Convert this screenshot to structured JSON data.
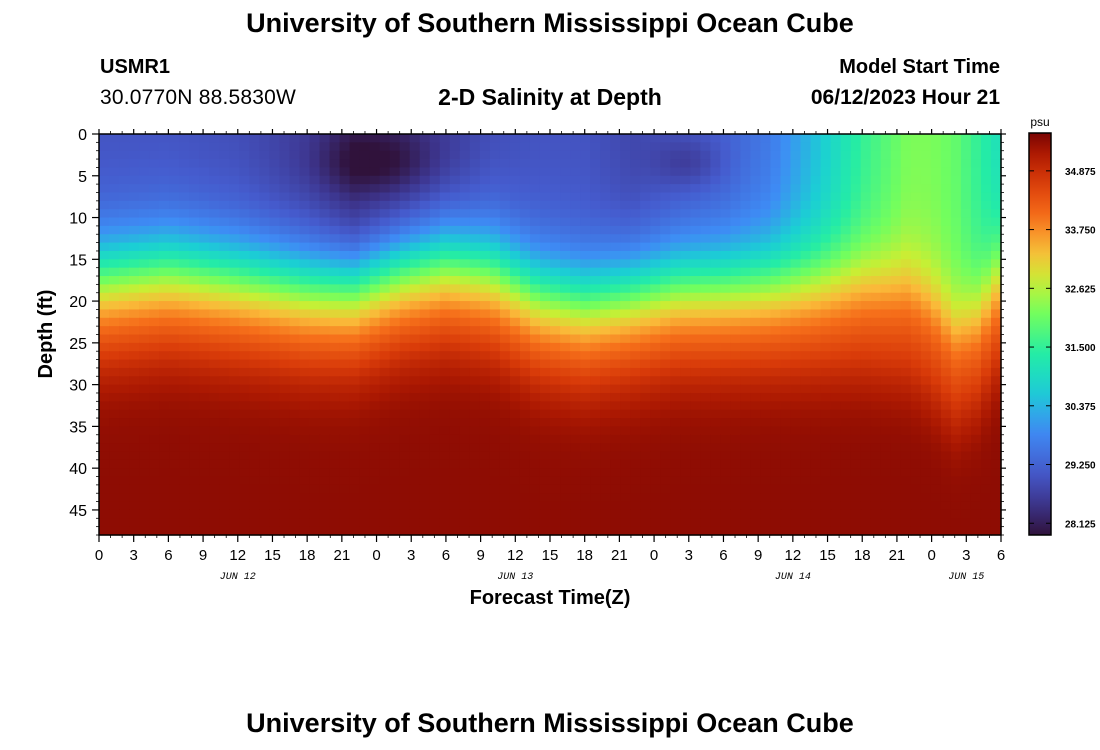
{
  "header": {
    "title": "University of Southern Mississippi Ocean Cube",
    "station_id": "USMR1",
    "station_coords": "30.0770N  88.5830W",
    "subtitle": "2-D Salinity at Depth",
    "model_start_label": "Model Start Time",
    "model_start_value": "06/12/2023 Hour 21"
  },
  "footer": {
    "title": "University of Southern Mississippi Ocean Cube"
  },
  "chart_data": {
    "type": "heatmap",
    "title": "2-D Salinity at Depth",
    "xlabel": "Forecast Time(Z)",
    "ylabel": "Depth (ft)",
    "x_hours": [
      0,
      78
    ],
    "xlim": [
      0,
      78
    ],
    "ylim": [
      0,
      48
    ],
    "x_tick_labels": [
      "0",
      "3",
      "6",
      "9",
      "12",
      "15",
      "18",
      "21",
      "0",
      "3",
      "6",
      "9",
      "12",
      "15",
      "18",
      "21",
      "0",
      "3",
      "6",
      "9",
      "12",
      "15",
      "18",
      "21",
      "0",
      "3",
      "6"
    ],
    "y_ticks": [
      0,
      5,
      10,
      15,
      20,
      25,
      30,
      35,
      40,
      45
    ],
    "date_labels": [
      {
        "label": "JUN 12",
        "hour": 12
      },
      {
        "label": "JUN 13",
        "hour": 36
      },
      {
        "label": "JUN 14",
        "hour": 60
      },
      {
        "label": "JUN 15",
        "hour": 75
      }
    ],
    "colorbar": {
      "unit": "psu",
      "min": 27.9,
      "max": 35.6,
      "tick_values": [
        28.125,
        29.25,
        30.375,
        31.5,
        32.625,
        33.75,
        34.875
      ],
      "tick_labels": [
        "28.125",
        "29.250",
        "30.375",
        "31.500",
        "32.625",
        "33.750",
        "34.875"
      ]
    },
    "field_description": {
      "hours": [
        0,
        6,
        12,
        18,
        22,
        26,
        30,
        34,
        38,
        42,
        46,
        50,
        54,
        58,
        62,
        66,
        70,
        72,
        74,
        76,
        78
      ],
      "halocline_depth_ft": [
        15,
        14,
        15,
        16,
        16,
        14,
        13,
        14,
        17,
        18,
        17,
        16,
        16,
        16,
        16,
        16,
        17,
        19,
        22,
        20,
        15
      ],
      "surface_salinity_psu": [
        29.0,
        29.0,
        28.9,
        28.6,
        28.2,
        28.3,
        28.6,
        28.9,
        29.0,
        29.0,
        28.8,
        29.0,
        29.2,
        29.6,
        30.5,
        31.5,
        32.2,
        32.2,
        32.0,
        31.5,
        31.0
      ]
    }
  }
}
